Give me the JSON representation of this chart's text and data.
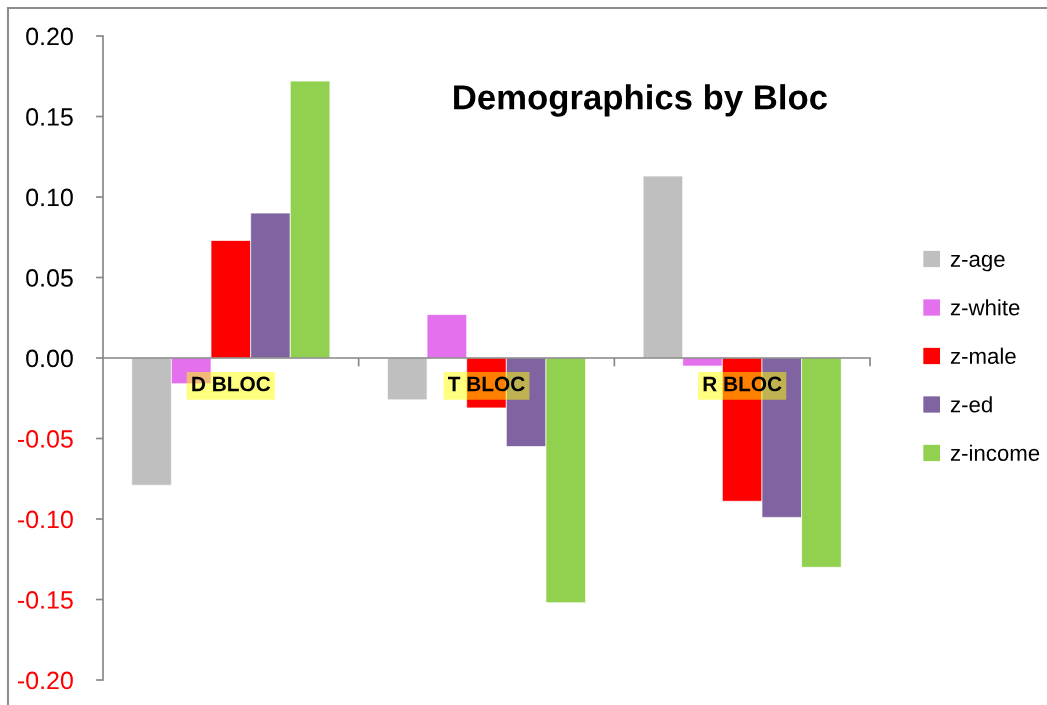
{
  "chart_data": {
    "type": "bar",
    "title": "Demographics by Bloc",
    "categories": [
      "D BLOC",
      "T BLOC",
      "R BLOC"
    ],
    "series": [
      {
        "name": "z-age",
        "color": "#bfbfbf",
        "values": [
          -0.079,
          -0.026,
          0.113
        ]
      },
      {
        "name": "z-white",
        "color": "#e470ee",
        "values": [
          -0.016,
          0.027,
          -0.005
        ]
      },
      {
        "name": "z-male",
        "color": "#ff0000",
        "values": [
          0.073,
          -0.031,
          -0.089
        ]
      },
      {
        "name": "z-ed",
        "color": "#8064a2",
        "values": [
          0.09,
          -0.055,
          -0.099
        ]
      },
      {
        "name": "z-income",
        "color": "#92d050",
        "values": [
          0.172,
          -0.152,
          -0.13
        ]
      }
    ],
    "ylim": [
      -0.2,
      0.2
    ],
    "yticks": [
      {
        "value": -0.2,
        "label": "-0.20"
      },
      {
        "value": -0.15,
        "label": "-0.15"
      },
      {
        "value": -0.1,
        "label": "-0.10"
      },
      {
        "value": -0.05,
        "label": "-0.05"
      },
      {
        "value": 0,
        "label": "0.00"
      },
      {
        "value": 0.05,
        "label": "0.05"
      },
      {
        "value": 0.1,
        "label": "0.10"
      },
      {
        "value": 0.15,
        "label": "0.15"
      },
      {
        "value": 0.2,
        "label": "0.20"
      }
    ],
    "legend": "right"
  }
}
